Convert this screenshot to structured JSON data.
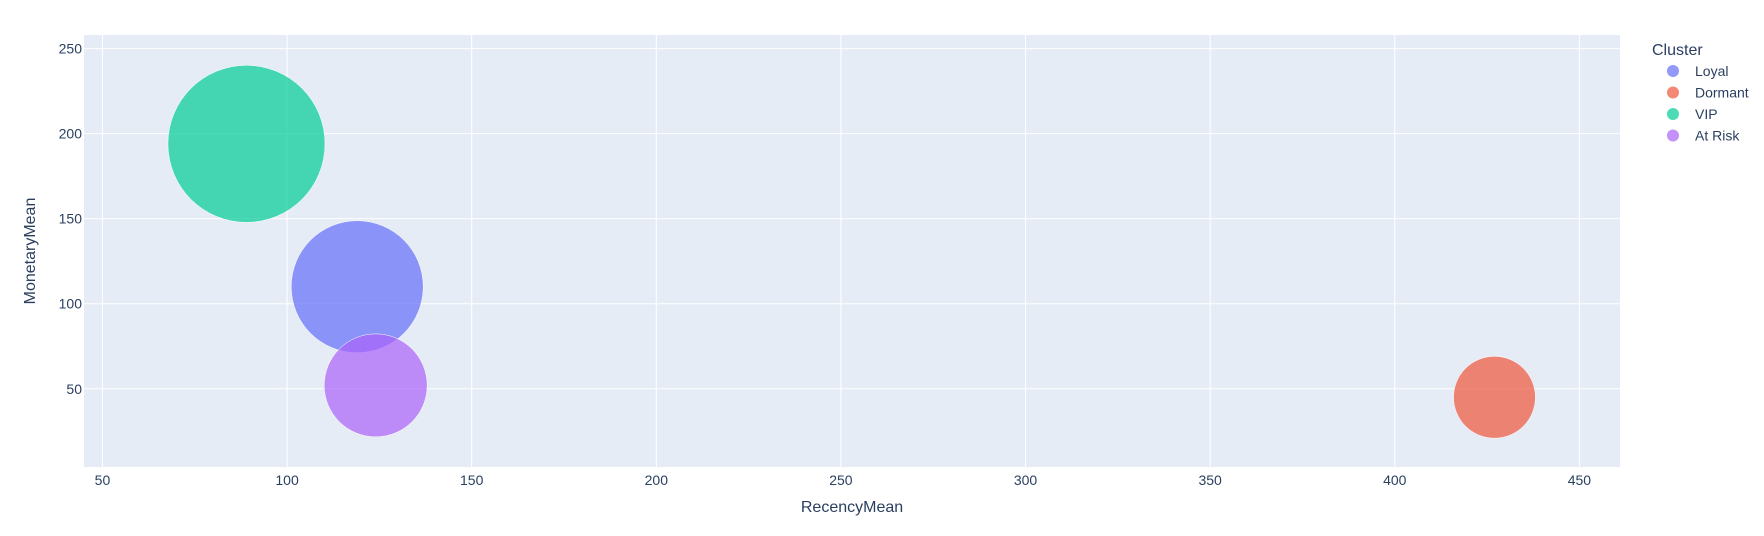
{
  "chart_data": {
    "type": "scatter",
    "variant": "bubble",
    "xlabel": "RecencyMean",
    "ylabel": "MonetaryMean",
    "xlim": [
      45,
      461
    ],
    "ylim": [
      4,
      258
    ],
    "xticks": [
      50,
      100,
      150,
      200,
      250,
      300,
      350,
      400,
      450
    ],
    "yticks": [
      50,
      100,
      150,
      200,
      250
    ],
    "grid": true,
    "legend": {
      "title": "Cluster",
      "position": "top-right"
    },
    "series": [
      {
        "name": "Loyal",
        "color": "#636efa",
        "x": 119,
        "y": 110,
        "relative_size": 1.0
      },
      {
        "name": "Dormant",
        "color": "#ef553b",
        "x": 427,
        "y": 45,
        "relative_size": 0.62
      },
      {
        "name": "VIP",
        "color": "#00cc96",
        "x": 89,
        "y": 194,
        "relative_size": 1.19
      },
      {
        "name": "At Risk",
        "color": "#ab63fa",
        "x": 124,
        "y": 52,
        "relative_size": 0.78
      }
    ],
    "plot_background": "#e5ecf6"
  }
}
